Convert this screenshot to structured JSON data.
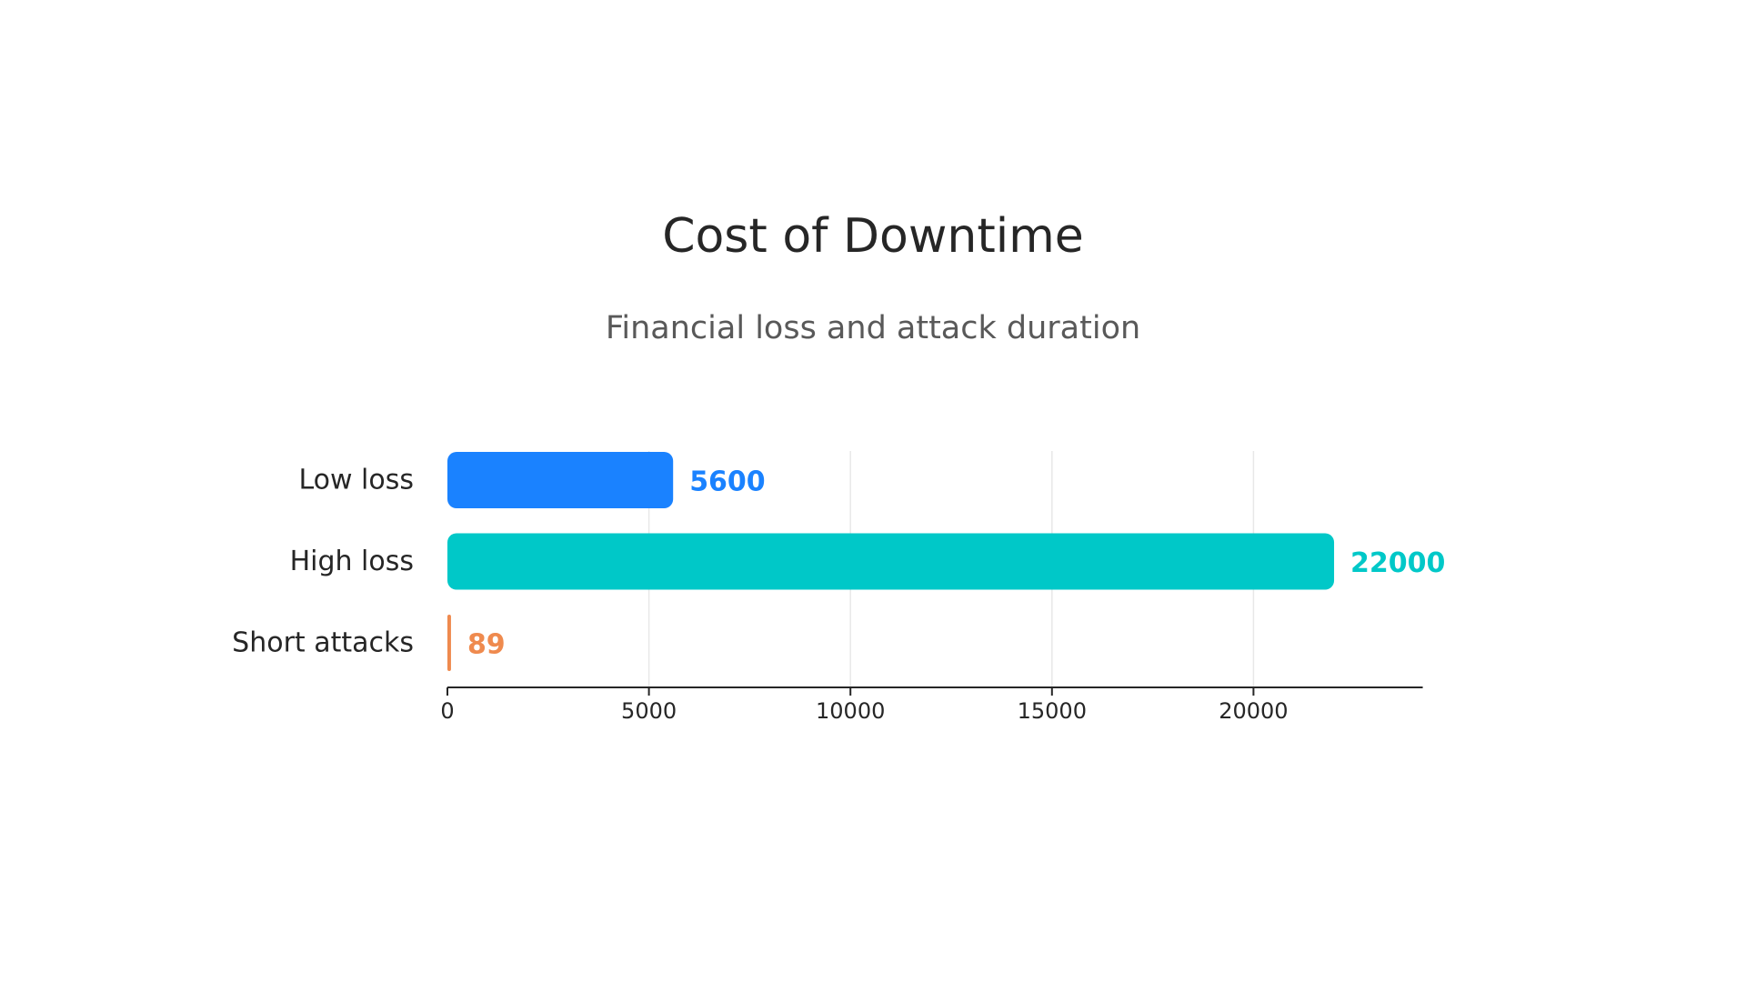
{
  "title": "Cost of Downtime",
  "subtitle": "Financial loss and attack duration",
  "chart_data": {
    "type": "bar",
    "orientation": "horizontal",
    "title": "Cost of Downtime",
    "subtitle": "Financial loss and attack duration",
    "categories": [
      "Low loss",
      "High loss",
      "Short attacks"
    ],
    "values": [
      5600,
      22000,
      89
    ],
    "colors": [
      "#1a82ff",
      "#00c8c8",
      "#ef8a4e"
    ],
    "xlim": [
      0,
      24200
    ],
    "xticks": [
      0,
      5000,
      10000,
      15000,
      20000
    ],
    "grid": true,
    "data_labels": true,
    "xlabel": "",
    "ylabel": ""
  }
}
